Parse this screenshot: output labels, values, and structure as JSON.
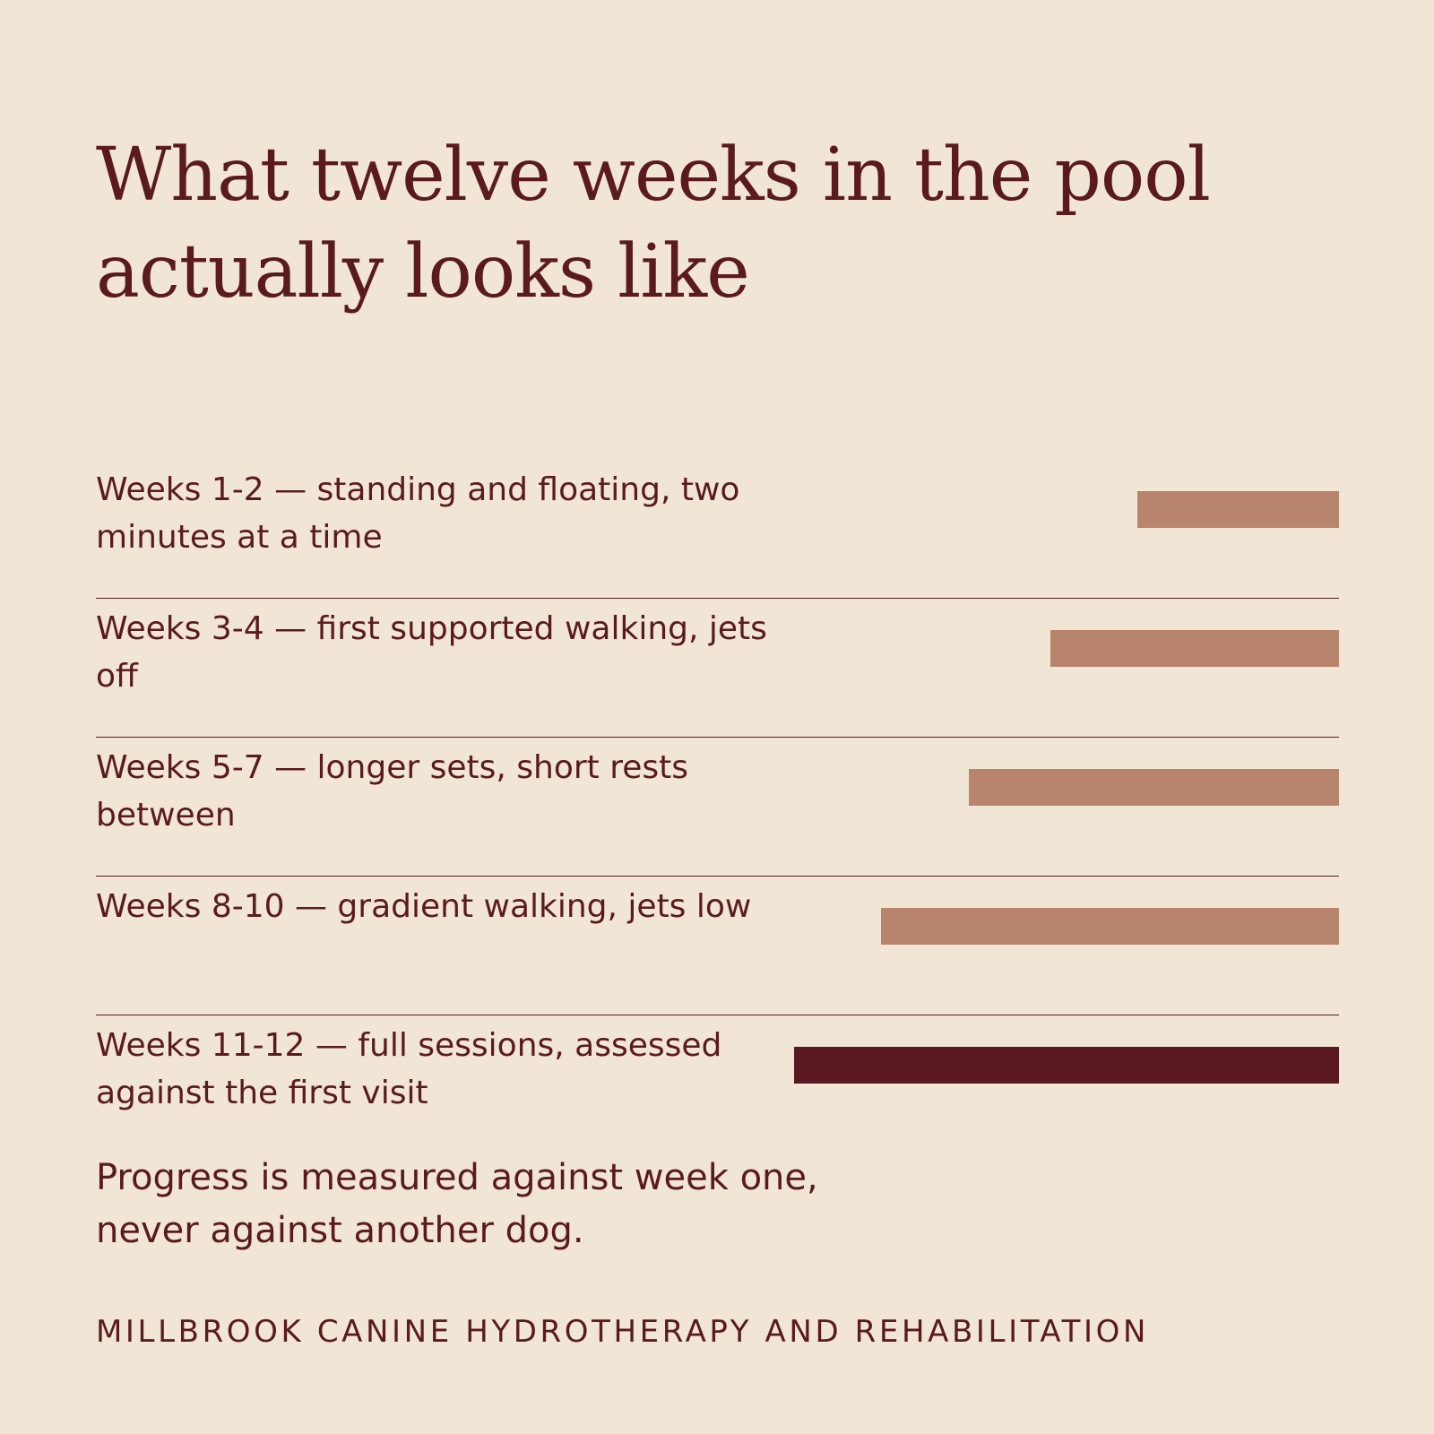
{
  "title": "What twelve weeks in the pool actually looks like",
  "chart_data": {
    "type": "bar",
    "orientation": "horizontal",
    "categories": [
      "Weeks 1-2 — standing and floating, two minutes at a time",
      "Weeks 3-4 — first supported walking, jets off",
      "Weeks 5-7 — longer sets, short rests between",
      "Weeks 8-10 — gradient walking, jets low",
      "Weeks 11-12 — full sessions, assessed against the first visit"
    ],
    "values": [
      0.37,
      0.53,
      0.68,
      0.84,
      1.0
    ],
    "xlim": [
      0,
      1
    ],
    "bar_align": "right",
    "grid": false,
    "colors": [
      "#b8846c",
      "#b8846c",
      "#b8846c",
      "#b8846c",
      "#5a1820"
    ]
  },
  "note": "Progress is measured against week one, never against another dog.",
  "brand": "MILLBROOK CANINE HYDROTHERAPY AND REHABILITATION"
}
